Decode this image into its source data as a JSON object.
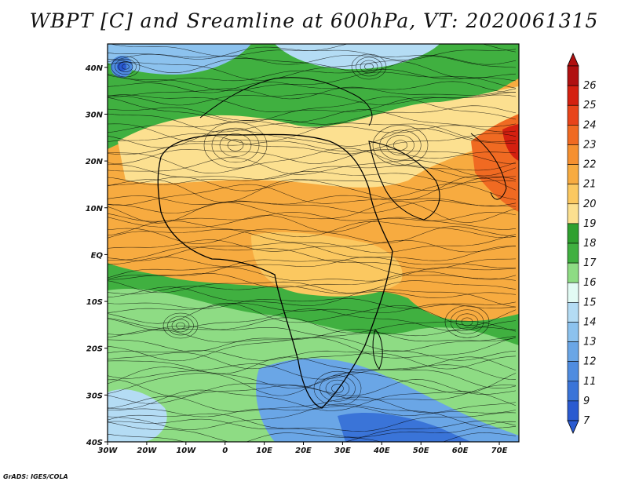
{
  "title": "WBPT [C] and Sreamline at 600hPa, VT: 2020061315",
  "credit": "GrADS: IGES/COLA",
  "map": {
    "lat_labels": [
      "40N",
      "30N",
      "20N",
      "10N",
      "EQ",
      "10S",
      "20S",
      "30S",
      "40S"
    ],
    "lat_values": [
      40,
      30,
      20,
      10,
      0,
      -10,
      -20,
      -30,
      -40
    ],
    "lon_labels": [
      "30W",
      "20W",
      "10W",
      "0",
      "10E",
      "20E",
      "30E",
      "40E",
      "50E",
      "60E",
      "70E"
    ],
    "lon_values": [
      -30,
      -20,
      -10,
      0,
      10,
      20,
      30,
      40,
      50,
      60,
      70
    ],
    "lon_range": [
      -30,
      75
    ],
    "lat_range": [
      -40,
      45
    ]
  },
  "colorbar": {
    "labels": [
      "26",
      "25",
      "24",
      "23",
      "22",
      "21",
      "20",
      "19",
      "18",
      "17",
      "16",
      "15",
      "14",
      "13",
      "12",
      "11",
      "9",
      "7"
    ],
    "colors": [
      "#b01010",
      "#d42010",
      "#e8441a",
      "#f06a22",
      "#f59030",
      "#f7ab40",
      "#fbc860",
      "#fce090",
      "#2fa02f",
      "#40b040",
      "#8edc84",
      "#e2fbf4",
      "#b4dcf4",
      "#8cc2ee",
      "#6aa6e6",
      "#4f8ce0",
      "#3a74d8",
      "#2a5ad0"
    ]
  }
}
